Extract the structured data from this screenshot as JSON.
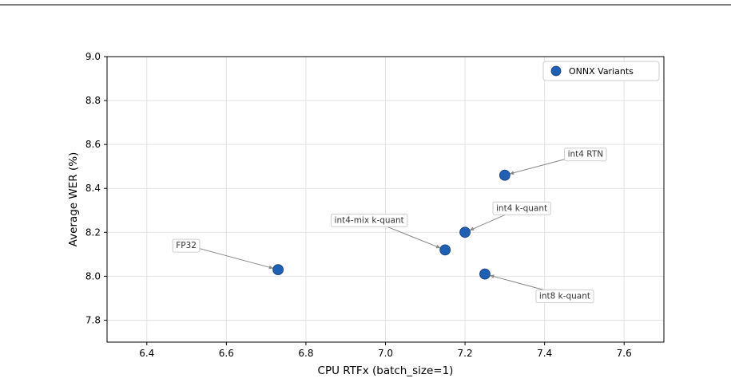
{
  "chart_data": {
    "type": "scatter",
    "xlabel": "CPU RTFx (batch_size=1)",
    "ylabel": "Average WER (%)",
    "xlim": [
      6.3,
      7.7
    ],
    "ylim": [
      7.7,
      9.0
    ],
    "xticks": [
      "6.4",
      "6.6",
      "6.8",
      "7.0",
      "7.2",
      "7.4",
      "7.6"
    ],
    "yticks": [
      "7.8",
      "8.0",
      "8.2",
      "8.4",
      "8.6",
      "8.8",
      "9.0"
    ],
    "grid": true,
    "legend": {
      "position": "top-right",
      "entries": [
        "ONNX Variants"
      ]
    },
    "series": [
      {
        "name": "ONNX Variants",
        "color": "#1f5fb4",
        "points": [
          {
            "label": "FP32",
            "x": 6.73,
            "y": 8.03
          },
          {
            "label": "int4-mix k-quant",
            "x": 7.15,
            "y": 8.12
          },
          {
            "label": "int4 k-quant",
            "x": 7.2,
            "y": 8.2
          },
          {
            "label": "int8 k-quant",
            "x": 7.25,
            "y": 8.01
          },
          {
            "label": "int4 RTN",
            "x": 7.3,
            "y": 8.46
          }
        ]
      }
    ]
  }
}
